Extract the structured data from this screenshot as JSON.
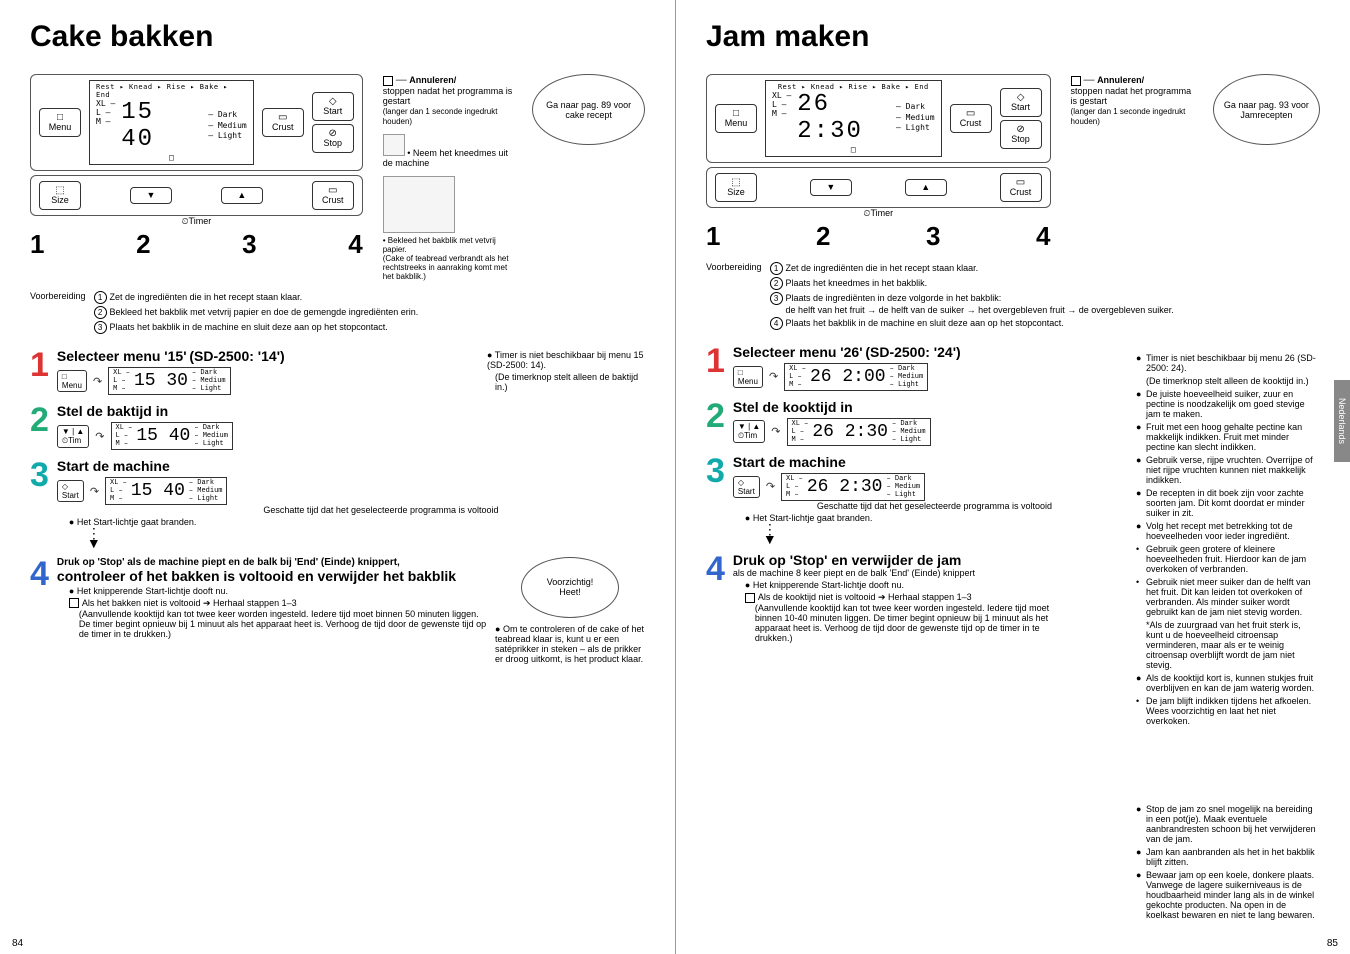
{
  "left": {
    "title": "Cake bakken",
    "panel": {
      "menu": "Menu",
      "size": "Size",
      "crust": "Crust",
      "start": "Start",
      "stop": "Stop",
      "timer": "Timer",
      "lcd_top": "Rest ▸ Knead ▸ Rise ▸ Bake ▸ End",
      "lcd_sizes": "XL –\nL –\nM –",
      "lcd_num": "15   40",
      "crust_labels": "– Dark\n– Medium\n– Light"
    },
    "stepnums": [
      "1",
      "2",
      "3",
      "4"
    ],
    "annul_title": "Annuleren/",
    "annul_body": "stoppen nadat het programma is gestart",
    "annul_small": "(langer dan 1 seconde ingedrukt houden)",
    "neem": "• Neem het kneedmes uit de machine",
    "bubble_top": "Ga naar pag. 89 voor cake recept",
    "prep_label": "Voorbereiding",
    "prep_items": [
      "Zet de ingrediënten die in het recept staan klaar.",
      "Bekleed het bakblik met vetvrij papier en doe de gemengde ingrediënten erin.",
      "Plaats het bakblik in de machine en sluit deze aan op het stopcontact."
    ],
    "caption_img": "• Bekleed het bakblik met vetvrij papier.\n(Cake of teabread verbrandt als het rechtstreeks in aanraking komt met het bakblik.)",
    "s1_title": "Selecteer menu '15'",
    "s1_sub": "(SD-2500: '14')",
    "s1_lcd": "15   30",
    "s1_r1": "Timer is niet beschikbaar bij menu 15 (SD-2500: 14).",
    "s1_r2": "(De timerknop stelt alleen de baktijd in.)",
    "s2_title": "Stel de baktijd in",
    "s2_lcd": "15   40",
    "s3_title": "Start de machine",
    "s3_lcd": "15   40",
    "s3_sub": "Geschatte tijd dat het geselecteerde programma is voltooid",
    "s3_b": "Het Start-lichtje gaat branden.",
    "s4_pre": "Druk op 'Stop' als de machine piept en de balk bij 'End' (Einde) knippert,",
    "s4_title": "controleer of het bakken is voltooid en verwijder het bakblik",
    "s4_b1": "Het knipperende Start-lichtje dooft nu.",
    "s4_b2": "Als het bakken niet is voltooid ➔ Herhaal stappen 1–3",
    "s4_b3": "(Aanvullende kooktijd kan tot twee keer worden ingesteld. Iedere tijd moet binnen 50 minuten liggen. De timer begint opnieuw bij 1 minuut als het apparaat heet is. Verhoog de tijd door de gewenste tijd op de timer in te drukken.)",
    "bubble_bot": "Voorzichtig!\nHeet!",
    "bot_r": "Om te controleren of de cake of het teabread klaar is, kunt u er een satéprikker in steken – als de prikker er droog uitkomt, is het product klaar.",
    "pagenum": "84"
  },
  "right": {
    "title": "Jam maken",
    "bubble_top": "Ga naar pag. 93 voor Jamrecepten",
    "lcd_num": "26  2:30",
    "prep_label": "Voorbereiding",
    "prep_items": [
      "Zet de ingrediënten die in het recept staan klaar.",
      "Plaats het kneedmes in het bakblik.",
      "Plaats de ingrediënten in deze volgorde in het bakblik:",
      "Plaats het bakblik in de machine en sluit deze aan op het stopcontact."
    ],
    "prep_sub": "de helft van het fruit → de helft van de suiker → het overgebleven fruit → de overgebleven suiker.",
    "s1_title": "Selecteer menu '26'",
    "s1_sub": "(SD-2500: '24')",
    "s1_lcd": "26  2:00",
    "s2_title": "Stel de kooktijd in",
    "s2_lcd": "26  2:30",
    "s3_title": "Start de machine",
    "s3_lcd": "26  2:30",
    "s3_sub": "Geschatte tijd dat het geselecteerde programma is voltooid",
    "s3_b": "Het Start-lichtje gaat branden.",
    "s4_title": "Druk op 'Stop' en verwijder de jam",
    "s4_sub": "als de machine 8 keer piept en de balk 'End' (Einde) knippert",
    "s4_b1": "Het knipperende Start-lichtje dooft nu.",
    "s4_b2": "Als de kooktijd niet is voltooid ➔ Herhaal stappen 1–3",
    "s4_b3": "(Aanvullende kooktijd kan tot twee keer worden ingesteld. Iedere tijd moet binnen 10-40 minuten liggen. De timer begint opnieuw bij 1 minuut als het apparaat heet is. Verhoog de tijd door de gewenste tijd op de timer in te drukken.)",
    "tips": [
      {
        "t": "Timer is niet beschikbaar bij menu 26 (SD-2500: 24).",
        "c": "b"
      },
      {
        "t": "(De timerknop stelt alleen de kooktijd in.)",
        "c": "p"
      },
      {
        "t": "De juiste hoeveelheid suiker, zuur en pectine is noodzakelijk om goed stevige jam te maken.",
        "c": "b"
      },
      {
        "t": "Fruit met een hoog gehalte pectine kan makkelijk indikken. Fruit met minder pectine kan slecht indikken.",
        "c": "b"
      },
      {
        "t": "Gebruik verse, rijpe vruchten. Overrijpe of niet rijpe vruchten kunnen niet makkelijk indikken.",
        "c": "b"
      },
      {
        "t": "De recepten in dit boek zijn voor zachte soorten jam. Dit komt doordat er minder suiker in zit.",
        "c": "b"
      },
      {
        "t": "Volg het recept met betrekking tot de hoeveelheden voor ieder ingrediënt.",
        "c": "b"
      },
      {
        "t": "Gebruik geen grotere of kleinere hoeveelheden fruit. Hierdoor kan de jam overkoken of verbranden.",
        "c": "s"
      },
      {
        "t": "Gebruik niet meer suiker dan de helft van het fruit. Dit kan leiden tot overkoken of verbranden. Als minder suiker wordt gebruikt kan de jam niet stevig worden.",
        "c": "s"
      },
      {
        "t": "*Als de zuurgraad van het fruit sterk is, kunt u de hoeveelheid citroensap verminderen, maar als er te weinig citroensap overblijft wordt de jam niet stevig.",
        "c": "p"
      },
      {
        "t": "Als de kooktijd kort is, kunnen stukjes fruit overblijven en kan de jam waterig worden.",
        "c": "b"
      },
      {
        "t": "De jam blijft indikken tijdens het afkoelen. Wees voorzichtig en laat het niet overkoken.",
        "c": "s"
      }
    ],
    "tips2": [
      {
        "t": "Stop de jam zo snel mogelijk na bereiding in een pot(je). Maak eventuele aanbrandresten schoon bij het verwijderen van de jam.",
        "c": "b"
      },
      {
        "t": "Jam kan aanbranden als het in het bakblik blijft zitten.",
        "c": "b"
      },
      {
        "t": "Bewaar jam op een koele, donkere plaats. Vanwege de lagere suikerniveaus is de houdbaarheid minder lang als in de winkel gekochte producten. Na open in de koelkast bewaren en niet te lang bewaren.",
        "c": "b"
      }
    ],
    "tab": "Nederlands",
    "pagenum": "85"
  }
}
